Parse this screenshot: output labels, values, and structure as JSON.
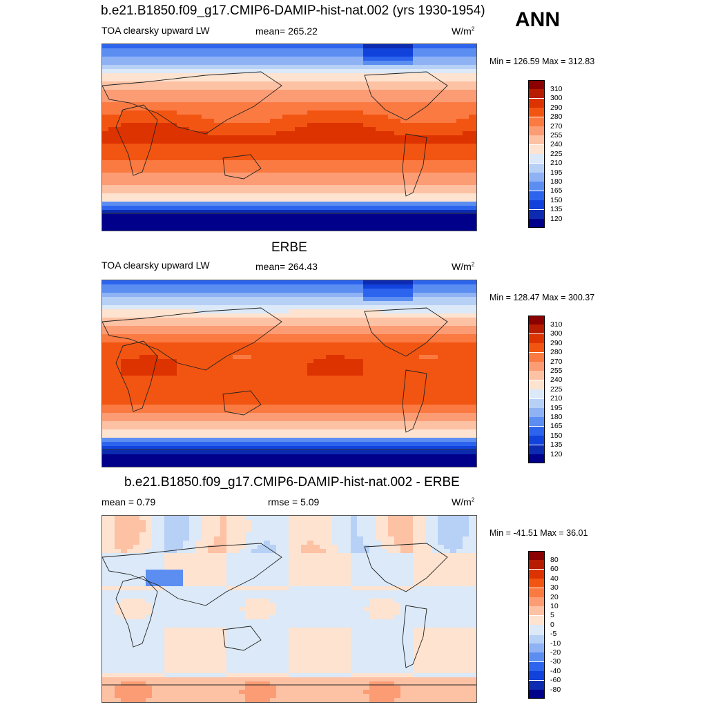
{
  "season": "ANN",
  "panels": [
    {
      "title": "b.e21.B1850.f09_g17.CMIP6-DAMIP-hist-nat.002 (yrs 1930-1954)",
      "left": "TOA clearsky upward LW",
      "center": "mean= 265.22",
      "units": "W/m",
      "units_sup": "2",
      "minmax": "Min = 126.59 Max = 312.83",
      "map_kind": "model"
    },
    {
      "title": "ERBE",
      "left": "TOA clearsky upward LW",
      "center": "mean= 264.43",
      "units": "W/m",
      "units_sup": "2",
      "minmax": "Min = 128.47 Max = 300.37",
      "map_kind": "obs"
    },
    {
      "title": "b.e21.B1850.f09_g17.CMIP6-DAMIP-hist-nat.002 - ERBE",
      "left": "mean =   0.79",
      "center": "rmse =   5.09",
      "units": "W/m",
      "units_sup": "2",
      "minmax": "Min = -41.51 Max =  36.01",
      "map_kind": "diff"
    }
  ],
  "colorbars": {
    "absolute": {
      "labels": [
        "310",
        "300",
        "290",
        "280",
        "270",
        "255",
        "240",
        "225",
        "210",
        "195",
        "180",
        "165",
        "150",
        "135",
        "120"
      ],
      "colors": [
        "#8b0000",
        "#b71c00",
        "#dd3300",
        "#f25511",
        "#fa7a42",
        "#fc9c74",
        "#fdc1a3",
        "#fee3d0",
        "#dbe9f8",
        "#b7d0f6",
        "#8fb2f5",
        "#5c8ef2",
        "#2d64ee",
        "#1242dc",
        "#0d2bb0",
        "#00008b"
      ]
    },
    "difference": {
      "labels": [
        "80",
        "60",
        "40",
        "30",
        "20",
        "10",
        "5",
        "0",
        "-5",
        "-10",
        "-20",
        "-30",
        "-40",
        "-60",
        "-80"
      ],
      "colors": [
        "#8b0000",
        "#b71c00",
        "#dd3300",
        "#f25511",
        "#fa7a42",
        "#fc9c74",
        "#fdc1a3",
        "#fee3d0",
        "#dbe9f8",
        "#b7d0f6",
        "#8fb2f5",
        "#5c8ef2",
        "#2d64ee",
        "#1242dc",
        "#0d2bb0",
        "#00008b"
      ]
    }
  }
}
